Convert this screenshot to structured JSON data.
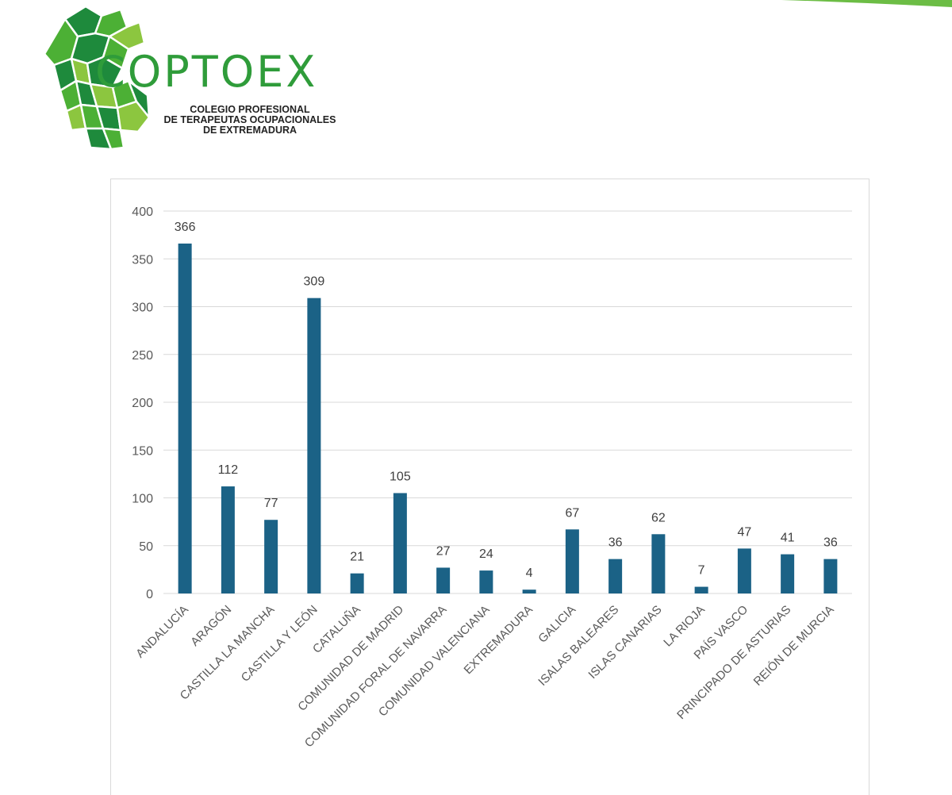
{
  "colors": {
    "bar": "#1b6286",
    "grid": "#d9d9d9",
    "axis_text": "#595959",
    "label_text": "#404040",
    "logo_dark": "#1e8a3c",
    "logo_light": "#8cc63f",
    "logo_mid": "#4cb035"
  },
  "logo": {
    "wordmark": "COPTOEX",
    "subtitle_lines": [
      "COLEGIO PROFESIONAL",
      "DE TERAPEUTAS OCUPACIONALES",
      "DE EXTREMADURA"
    ]
  },
  "chart_data": {
    "type": "bar",
    "title": "",
    "xlabel": "",
    "ylabel": "",
    "ylim": [
      0,
      400
    ],
    "yticks": [
      0,
      50,
      100,
      150,
      200,
      250,
      300,
      350,
      400
    ],
    "grid": true,
    "legend": "none",
    "data_labels": true,
    "categories": [
      "ANDALUCÍA",
      "ARAGÓN",
      "CASTILLA LA MANCHA",
      "CASTILLA Y LEÓN",
      "CATALUÑA",
      "COMUNIDAD DE MADRID",
      "COMUNIDAD FORAL DE NAVARRA",
      "COMUNIDAD VALENCIANA",
      "EXTREMADURA",
      "GALICIA",
      "ISALAS BALEARES",
      "ISLAS CANARIAS",
      "LA RIOJA",
      "PAÍS VASCO",
      "PRINCIPADO  DE ASTURIAS",
      "REIÓN DE MURCIA"
    ],
    "values": [
      366,
      112,
      77,
      309,
      21,
      105,
      27,
      24,
      4,
      67,
      36,
      62,
      7,
      47,
      41,
      36
    ]
  }
}
